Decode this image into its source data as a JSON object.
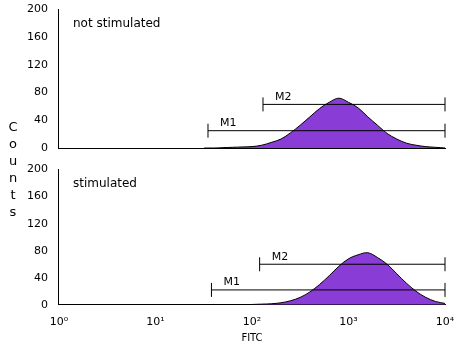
{
  "chart_data": [
    {
      "type": "area",
      "title": "not stimulated",
      "ylabel": "Counts",
      "color": "#8a3cd6",
      "x": [
        32,
        40,
        50,
        63,
        79,
        100,
        126,
        158,
        200,
        251,
        316,
        398,
        501,
        631,
        794,
        1000,
        1259,
        1585,
        1995,
        2512,
        3162,
        3981,
        5012,
        6310,
        7943,
        10000
      ],
      "values": [
        0,
        0,
        0.5,
        1,
        1.5,
        2,
        4,
        8,
        13,
        22,
        33,
        45,
        57,
        66,
        72,
        66,
        58,
        45,
        33,
        21,
        13,
        7,
        4,
        2,
        1,
        0
      ],
      "log": "x",
      "grid": false,
      "tick_labels": "y",
      "xlim": [
        1,
        10000
      ],
      "xticks": [
        {
          "value": 1,
          "label": "10⁰"
        },
        {
          "value": 10,
          "label": "10¹"
        },
        {
          "value": 100,
          "label": "10²"
        },
        {
          "value": 1000,
          "label": "10³"
        },
        {
          "value": 10000,
          "label": "10⁴"
        }
      ],
      "ylim": [
        0,
        200
      ],
      "yticks": [
        0,
        40,
        80,
        120,
        160,
        200
      ],
      "markers": [
        {
          "label": "M1",
          "x": [
            35,
            10000
          ],
          "y": 25
        },
        {
          "label": "M2",
          "x": [
            130,
            10000
          ],
          "y": 63
        }
      ]
    },
    {
      "type": "area",
      "title": "stimulated",
      "xlabel": "FITC",
      "color": "#8a3cd6",
      "x": [
        32,
        40,
        50,
        63,
        79,
        100,
        126,
        158,
        200,
        251,
        316,
        398,
        501,
        631,
        794,
        1000,
        1259,
        1585,
        1995,
        2512,
        3162,
        3981,
        5012,
        6310,
        7943,
        10000
      ],
      "values": [
        0,
        0,
        0,
        0,
        0,
        0.5,
        1,
        1.5,
        3,
        6,
        11,
        19,
        30,
        43,
        57,
        68,
        74,
        77,
        70,
        60,
        46,
        32,
        20,
        11,
        5,
        2
      ],
      "log": "x",
      "grid": false,
      "xlim": [
        1,
        10000
      ],
      "xticks": [
        {
          "value": 1,
          "label": "10⁰"
        },
        {
          "value": 10,
          "label": "10¹"
        },
        {
          "value": 100,
          "label": "10²"
        },
        {
          "value": 1000,
          "label": "10³"
        },
        {
          "value": 10000,
          "label": "10⁴"
        }
      ],
      "ylim": [
        0,
        200
      ],
      "yticks": [
        0,
        40,
        80,
        120,
        160,
        200
      ],
      "markers": [
        {
          "label": "M1",
          "x": [
            38,
            10000
          ],
          "y": 22
        },
        {
          "label": "M2",
          "x": [
            120,
            10000
          ],
          "y": 60
        }
      ]
    }
  ]
}
